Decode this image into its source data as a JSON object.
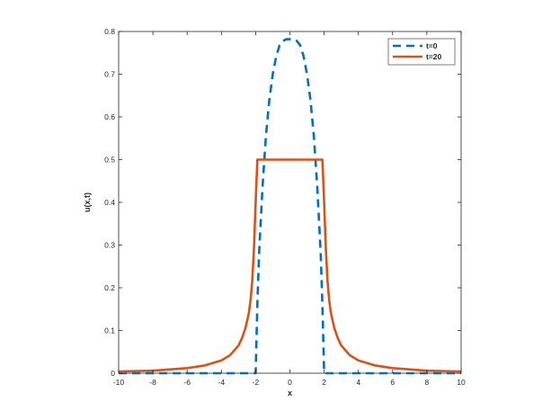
{
  "chart_data": {
    "type": "line",
    "xlabel": "x",
    "ylabel": "u(x,t)",
    "xlim": [
      -10,
      10
    ],
    "ylim": [
      0,
      0.8
    ],
    "xticks": [
      "-10",
      "-8",
      "-6",
      "-4",
      "-2",
      "0",
      "2",
      "4",
      "6",
      "8",
      "10"
    ],
    "yticks": [
      "0",
      "0.1",
      "0.2",
      "0.3",
      "0.4",
      "0.5",
      "0.6",
      "0.7",
      "0.8"
    ],
    "grid": false,
    "legend_position": "top-right",
    "series": [
      {
        "name": "t=0",
        "style": "dashed",
        "color": "#0072BD",
        "x": [
          -10,
          -2.05,
          -2,
          -1.9,
          -1.8,
          -1.6,
          -1.4,
          -1.2,
          -1.0,
          -0.8,
          -0.6,
          -0.4,
          -0.2,
          0,
          0.2,
          0.4,
          0.6,
          0.8,
          1.0,
          1.2,
          1.4,
          1.6,
          1.8,
          1.9,
          2,
          2.05,
          10
        ],
        "y": [
          0,
          0,
          0,
          0.16,
          0.28,
          0.435,
          0.555,
          0.64,
          0.7,
          0.742,
          0.768,
          0.778,
          0.782,
          0.782,
          0.782,
          0.778,
          0.768,
          0.742,
          0.7,
          0.64,
          0.555,
          0.435,
          0.28,
          0.16,
          0,
          0,
          0
        ]
      },
      {
        "name": "t=20",
        "style": "solid",
        "color": "#D95319",
        "x": [
          -10,
          -8,
          -6,
          -5,
          -4,
          -3.5,
          -3,
          -2.8,
          -2.6,
          -2.4,
          -2.3,
          -2.2,
          -2.1,
          -2.0,
          -1.9,
          1.9,
          2.0,
          2.1,
          2.2,
          2.3,
          2.4,
          2.6,
          2.8,
          3,
          3.5,
          4,
          5,
          6,
          8,
          10
        ],
        "y": [
          0.004,
          0.006,
          0.012,
          0.018,
          0.03,
          0.042,
          0.065,
          0.082,
          0.105,
          0.14,
          0.17,
          0.215,
          0.29,
          0.4,
          0.5,
          0.5,
          0.4,
          0.29,
          0.215,
          0.17,
          0.14,
          0.105,
          0.082,
          0.065,
          0.042,
          0.03,
          0.018,
          0.012,
          0.006,
          0.004
        ]
      }
    ]
  }
}
